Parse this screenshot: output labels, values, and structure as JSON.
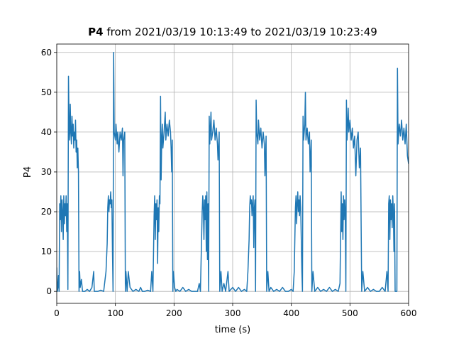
{
  "chart_data": {
    "type": "line",
    "title_series": "P4",
    "title": "from 2021/03/19 10:13:49 to 2021/03/19 10:23:49",
    "xlabel": "time (s)",
    "ylabel": "P4",
    "xlim": [
      0,
      600
    ],
    "ylim": [
      -3,
      62.1
    ],
    "xticks": [
      0,
      100,
      200,
      300,
      400,
      500,
      600
    ],
    "yticks": [
      0,
      10,
      20,
      30,
      40,
      50,
      60
    ],
    "grid": true,
    "series": [
      {
        "color": "#1f77b4",
        "x": [
          0,
          1,
          2,
          3,
          4,
          5,
          6,
          7,
          8,
          9,
          10,
          11,
          12,
          13,
          14,
          15,
          16,
          17,
          18,
          19,
          20,
          21,
          22,
          23,
          24,
          25,
          26,
          27,
          28,
          29,
          30,
          31,
          32,
          33,
          34,
          35,
          36,
          37,
          38,
          39,
          40,
          42,
          44,
          48,
          52,
          56,
          60,
          63,
          64,
          70,
          75,
          80,
          84,
          86,
          87,
          88,
          89,
          90,
          91,
          92,
          93,
          94,
          95,
          96,
          97,
          98,
          100,
          101,
          103,
          104,
          106,
          108,
          110,
          112,
          113,
          114,
          116,
          117,
          118,
          120,
          122,
          125,
          130,
          135,
          140,
          143,
          146,
          150,
          155,
          160,
          162,
          164,
          166,
          167,
          168,
          169,
          170,
          171,
          172,
          173,
          174,
          175,
          176,
          177,
          178,
          179,
          180,
          181,
          183,
          185,
          186,
          188,
          190,
          192,
          194,
          195,
          196,
          197,
          198,
          199,
          201,
          203,
          205,
          210,
          215,
          220,
          225,
          230,
          235,
          240,
          243,
          245,
          248,
          249,
          250,
          251,
          252,
          253,
          254,
          255,
          256,
          257,
          258,
          259,
          260,
          261,
          263,
          264,
          266,
          268,
          270,
          272,
          274,
          275,
          277,
          278,
          280,
          282,
          285,
          288,
          292,
          294,
          300,
          305,
          310,
          315,
          320,
          324,
          326,
          328,
          329,
          330,
          331,
          332,
          333,
          334,
          335,
          336,
          337,
          338,
          339,
          340,
          341,
          343,
          344,
          346,
          348,
          350,
          352,
          354,
          355,
          357,
          358,
          360,
          362,
          365,
          370,
          375,
          380,
          385,
          390,
          395,
          400,
          403,
          405,
          407,
          408,
          409,
          410,
          411,
          412,
          413,
          414,
          415,
          416,
          418,
          419,
          420,
          421,
          423,
          424,
          425,
          427,
          429,
          431,
          432,
          434,
          435,
          437,
          440,
          445,
          450,
          455,
          460,
          465,
          470,
          475,
          480,
          483,
          485,
          486,
          487,
          488,
          489,
          490,
          491,
          492,
          493,
          494,
          495,
          497,
          498,
          500,
          502,
          504,
          506,
          508,
          510,
          512,
          514,
          516,
          518,
          520,
          522,
          525,
          530,
          535,
          540,
          545,
          550,
          555,
          560,
          563,
          565,
          566,
          567,
          568,
          569,
          570,
          571,
          572,
          573,
          574,
          575,
          576,
          577,
          580,
          581,
          582,
          584,
          586,
          588,
          590,
          592,
          594,
          596,
          598,
          600
        ],
        "values": [
          6,
          0,
          1,
          4,
          0,
          22,
          18,
          24,
          15,
          23,
          20,
          13,
          24,
          17,
          22,
          19,
          24,
          15,
          22,
          0.5,
          54,
          42,
          38,
          47,
          40,
          37,
          44,
          39,
          42,
          36,
          40,
          38,
          43,
          35,
          38,
          31,
          36,
          30,
          0,
          5,
          1,
          3,
          0,
          0,
          0.5,
          0,
          1,
          5,
          0,
          0,
          0.3,
          0,
          5,
          12,
          21,
          24,
          20,
          23,
          22,
          25,
          21,
          23,
          10,
          0,
          60,
          40,
          38,
          42,
          37,
          40,
          35,
          40,
          38,
          41,
          29,
          38,
          40,
          0,
          5,
          0,
          5,
          1,
          0,
          0.5,
          0,
          1,
          0,
          0,
          0.3,
          0,
          5,
          0,
          19,
          24,
          13,
          22,
          18,
          23,
          7,
          21,
          15,
          24,
          22,
          49,
          28,
          38,
          42,
          36,
          40,
          45,
          38,
          42,
          39,
          43,
          40,
          36,
          30,
          38,
          0,
          5,
          1,
          0,
          0.5,
          0,
          1,
          0,
          0.5,
          0,
          0,
          0,
          2,
          0,
          20,
          24,
          21,
          13,
          23,
          18,
          24,
          10,
          25,
          8,
          22,
          0,
          44,
          37,
          45,
          38,
          40,
          43,
          38,
          41,
          37,
          33,
          40,
          0,
          5,
          0,
          2,
          0,
          5,
          0,
          1,
          0,
          1,
          0,
          0.5,
          0,
          5,
          13,
          21,
          24,
          22,
          23,
          19,
          22,
          24,
          11,
          21,
          23,
          0,
          48,
          40,
          37,
          43,
          38,
          41,
          36,
          40,
          37,
          29,
          39,
          0,
          5,
          0,
          1,
          0,
          0.5,
          0,
          1,
          0,
          0,
          0.5,
          0,
          5,
          21,
          24,
          17,
          22,
          25,
          20,
          23,
          19,
          24,
          21,
          5,
          0,
          44,
          38,
          42,
          50,
          38,
          41,
          37,
          40,
          30,
          38,
          0,
          5,
          0,
          1,
          0,
          0.5,
          0,
          1,
          0,
          0.5,
          0,
          2,
          25,
          15,
          22,
          13,
          24,
          18,
          23,
          20,
          0,
          48,
          38,
          46,
          40,
          43,
          38,
          41,
          36,
          39,
          29,
          38,
          40,
          31,
          36,
          0,
          5,
          0,
          1,
          0,
          0.5,
          0,
          0,
          1,
          0,
          5,
          0,
          22,
          24,
          13,
          23,
          18,
          22,
          16,
          24,
          20,
          10,
          22,
          0,
          0,
          56,
          37,
          42,
          39,
          43,
          38,
          41,
          37,
          42,
          34,
          32
        ]
      }
    ]
  }
}
